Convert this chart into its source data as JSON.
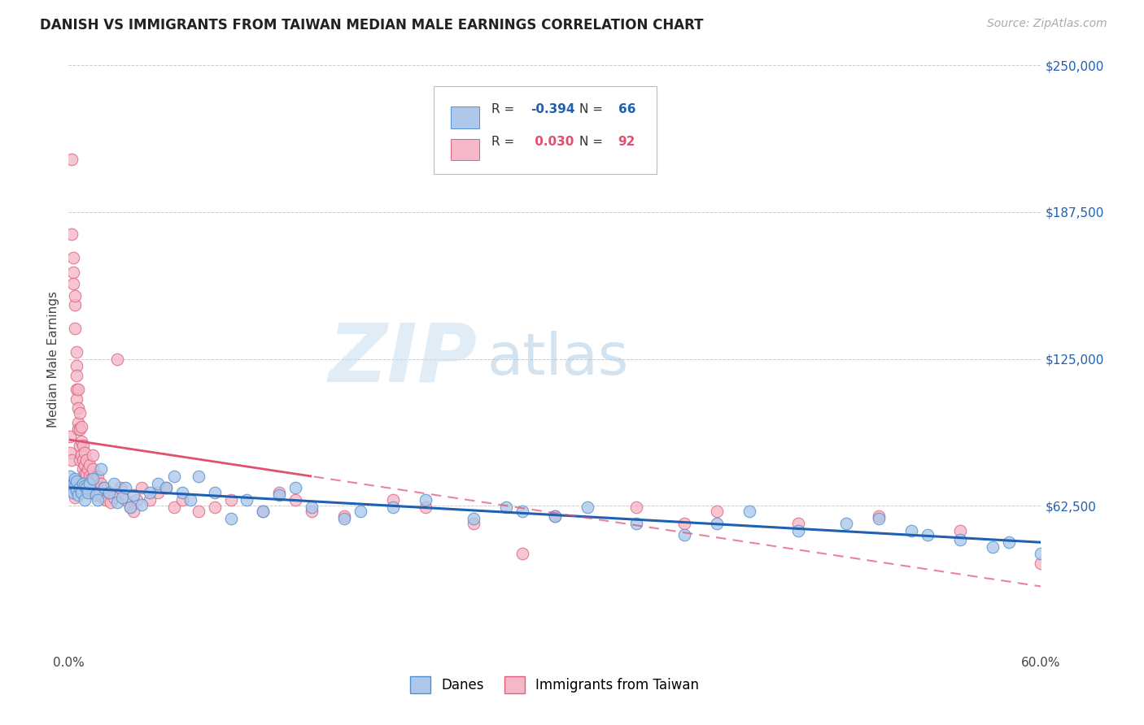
{
  "title": "DANISH VS IMMIGRANTS FROM TAIWAN MEDIAN MALE EARNINGS CORRELATION CHART",
  "source": "Source: ZipAtlas.com",
  "ylabel": "Median Male Earnings",
  "watermark_zip": "ZIP",
  "watermark_atlas": "atlas",
  "legend_danes_label": "Danes",
  "legend_immigrants_label": "Immigrants from Taiwan",
  "danes_R": -0.394,
  "danes_N": 66,
  "immigrants_R": 0.03,
  "immigrants_N": 92,
  "danes_color": "#adc8ea",
  "danes_edge_color": "#5090d0",
  "danes_line_color": "#2060b0",
  "immigrants_color": "#f5b8c8",
  "immigrants_edge_color": "#e06080",
  "immigrants_line_color": "#e05070",
  "xlim": [
    0.0,
    0.6
  ],
  "ylim": [
    0,
    250000
  ],
  "yticks": [
    0,
    62500,
    125000,
    187500,
    250000
  ],
  "ytick_labels": [
    "",
    "$62,500",
    "$125,000",
    "$187,500",
    "$250,000"
  ],
  "xticks": [
    0.0,
    0.1,
    0.2,
    0.3,
    0.4,
    0.5,
    0.6
  ],
  "xtick_labels": [
    "0.0%",
    "",
    "",
    "",
    "",
    "",
    "60.0%"
  ],
  "background_color": "#ffffff",
  "danes_x": [
    0.001,
    0.002,
    0.003,
    0.003,
    0.004,
    0.004,
    0.005,
    0.005,
    0.006,
    0.007,
    0.008,
    0.009,
    0.01,
    0.01,
    0.011,
    0.012,
    0.013,
    0.015,
    0.017,
    0.018,
    0.02,
    0.022,
    0.025,
    0.028,
    0.03,
    0.033,
    0.035,
    0.038,
    0.04,
    0.045,
    0.05,
    0.055,
    0.06,
    0.065,
    0.07,
    0.075,
    0.08,
    0.09,
    0.1,
    0.11,
    0.12,
    0.13,
    0.14,
    0.15,
    0.17,
    0.18,
    0.2,
    0.22,
    0.25,
    0.27,
    0.28,
    0.3,
    0.32,
    0.35,
    0.38,
    0.4,
    0.42,
    0.45,
    0.48,
    0.5,
    0.52,
    0.53,
    0.55,
    0.57,
    0.58,
    0.6
  ],
  "danes_y": [
    75000,
    70000,
    72000,
    68000,
    71000,
    74000,
    69000,
    73000,
    67000,
    70000,
    68000,
    72000,
    71000,
    65000,
    70000,
    68000,
    72000,
    74000,
    67000,
    65000,
    78000,
    70000,
    68000,
    72000,
    64000,
    66000,
    70000,
    62000,
    67000,
    63000,
    68000,
    72000,
    70000,
    75000,
    68000,
    65000,
    75000,
    68000,
    57000,
    65000,
    60000,
    67000,
    70000,
    62000,
    57000,
    60000,
    62000,
    65000,
    57000,
    62000,
    60000,
    58000,
    62000,
    55000,
    50000,
    55000,
    60000,
    52000,
    55000,
    57000,
    52000,
    50000,
    48000,
    45000,
    47000,
    42000
  ],
  "immigrants_x": [
    0.001,
    0.001,
    0.002,
    0.002,
    0.002,
    0.003,
    0.003,
    0.003,
    0.003,
    0.004,
    0.004,
    0.004,
    0.004,
    0.005,
    0.005,
    0.005,
    0.005,
    0.005,
    0.006,
    0.006,
    0.006,
    0.006,
    0.007,
    0.007,
    0.007,
    0.007,
    0.008,
    0.008,
    0.008,
    0.009,
    0.009,
    0.009,
    0.009,
    0.01,
    0.01,
    0.01,
    0.01,
    0.011,
    0.011,
    0.012,
    0.012,
    0.013,
    0.013,
    0.013,
    0.014,
    0.014,
    0.015,
    0.015,
    0.016,
    0.017,
    0.017,
    0.018,
    0.019,
    0.02,
    0.021,
    0.022,
    0.023,
    0.025,
    0.026,
    0.028,
    0.03,
    0.032,
    0.035,
    0.038,
    0.04,
    0.042,
    0.045,
    0.05,
    0.055,
    0.06,
    0.065,
    0.07,
    0.08,
    0.09,
    0.1,
    0.12,
    0.13,
    0.14,
    0.15,
    0.17,
    0.2,
    0.22,
    0.25,
    0.28,
    0.3,
    0.35,
    0.38,
    0.4,
    0.45,
    0.5,
    0.55,
    0.6
  ],
  "immigrants_y": [
    92000,
    85000,
    210000,
    82000,
    178000,
    168000,
    162000,
    157000,
    72000,
    148000,
    152000,
    138000,
    66000,
    128000,
    122000,
    118000,
    112000,
    108000,
    112000,
    104000,
    98000,
    95000,
    102000,
    95000,
    88000,
    82000,
    96000,
    90000,
    84000,
    88000,
    82000,
    78000,
    74000,
    85000,
    80000,
    76000,
    70000,
    82000,
    76000,
    78000,
    72000,
    75000,
    80000,
    68000,
    74000,
    70000,
    78000,
    84000,
    70000,
    74000,
    68000,
    75000,
    68000,
    72000,
    66000,
    70000,
    65000,
    68000,
    64000,
    66000,
    125000,
    70000,
    65000,
    62000,
    60000,
    65000,
    70000,
    65000,
    68000,
    70000,
    62000,
    65000,
    60000,
    62000,
    65000,
    60000,
    68000,
    65000,
    60000,
    58000,
    65000,
    62000,
    55000,
    42000,
    58000,
    62000,
    55000,
    60000,
    55000,
    58000,
    52000,
    38000
  ]
}
